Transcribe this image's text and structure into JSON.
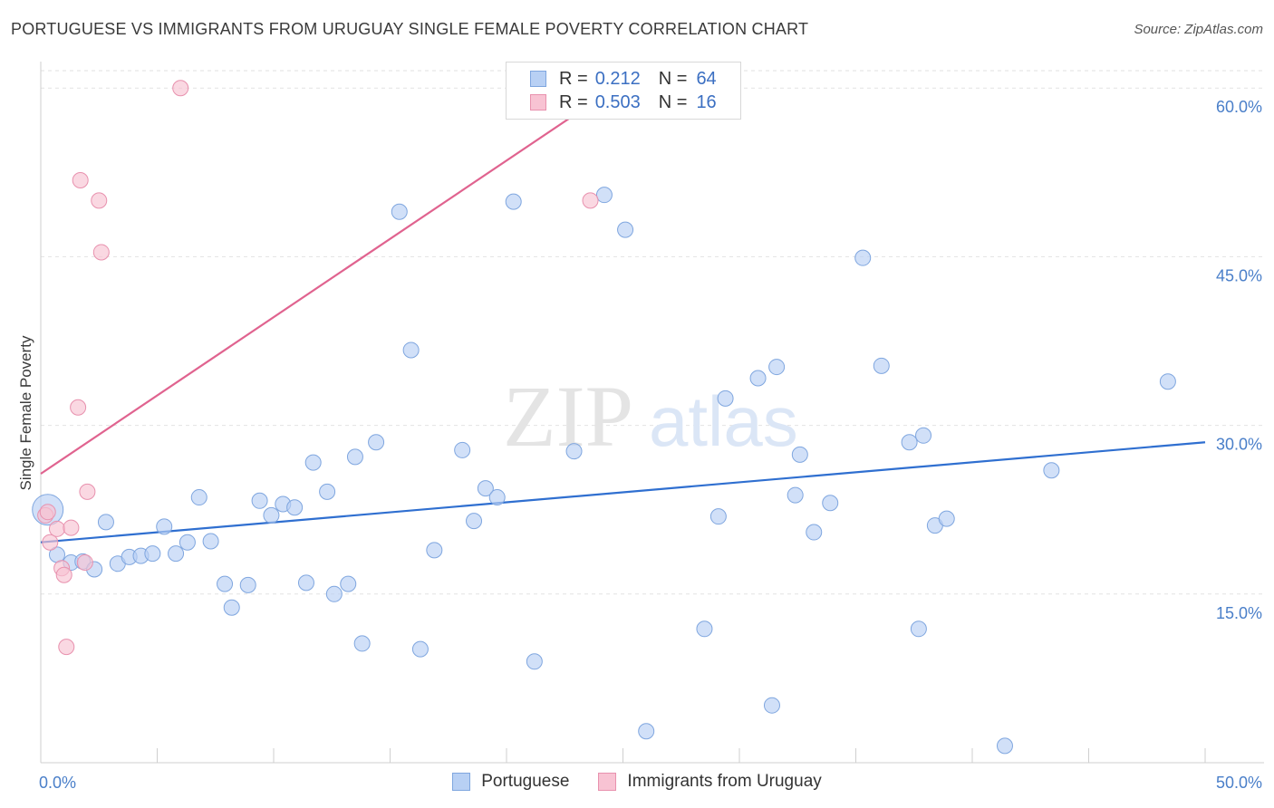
{
  "header": {
    "title": "PORTUGUESE VS IMMIGRANTS FROM URUGUAY SINGLE FEMALE POVERTY CORRELATION CHART",
    "source": "Source: ZipAtlas.com"
  },
  "colors": {
    "blue_fill": "#b8d0f4",
    "blue_stroke": "#7fa6df",
    "blue_line": "#2f6fd0",
    "pink_fill": "#f8c3d3",
    "pink_stroke": "#e891ae",
    "pink_line": "#e0638f",
    "grid": "#e2e2e2",
    "axis_text": "#4a7fc9"
  },
  "legend": {
    "series1": {
      "r_label": "R =",
      "r_value": "0.212",
      "n_label": "N =",
      "n_value": "64"
    },
    "series2": {
      "r_label": "R =",
      "r_value": "0.503",
      "n_label": "N =",
      "n_value": "16"
    }
  },
  "watermark": {
    "part1": "ZIP",
    "part2": "atlas"
  },
  "chart_data": {
    "type": "scatter",
    "title": "PORTUGUESE VS IMMIGRANTS FROM URUGUAY SINGLE FEMALE POVERTY CORRELATION CHART",
    "xlabel": "",
    "ylabel": "Single Female Poverty",
    "xlim": [
      0,
      50
    ],
    "ylim": [
      0,
      63
    ],
    "x_ticks": [
      "0.0%",
      "50.0%"
    ],
    "y_ticks": [
      {
        "value": 15,
        "label": "15.0%"
      },
      {
        "value": 30,
        "label": "30.0%"
      },
      {
        "value": 45,
        "label": "45.0%"
      },
      {
        "value": 60,
        "label": "60.0%"
      }
    ],
    "grid": true,
    "legend_position": "top-center",
    "series": [
      {
        "name": "Portuguese",
        "r": 0.212,
        "n": 64,
        "trend": {
          "x": [
            0,
            50
          ],
          "y": [
            19.6,
            28.5
          ]
        },
        "points": [
          {
            "x": 0.3,
            "y": 22.5,
            "big": true
          },
          {
            "x": 0.7,
            "y": 18.5
          },
          {
            "x": 1.3,
            "y": 17.8
          },
          {
            "x": 1.8,
            "y": 17.9
          },
          {
            "x": 2.3,
            "y": 17.2
          },
          {
            "x": 2.8,
            "y": 21.4
          },
          {
            "x": 3.3,
            "y": 17.7
          },
          {
            "x": 3.8,
            "y": 18.3
          },
          {
            "x": 4.3,
            "y": 18.4
          },
          {
            "x": 4.8,
            "y": 18.6
          },
          {
            "x": 5.3,
            "y": 21.0
          },
          {
            "x": 5.8,
            "y": 18.6
          },
          {
            "x": 6.3,
            "y": 19.6
          },
          {
            "x": 6.8,
            "y": 23.6
          },
          {
            "x": 7.3,
            "y": 19.7
          },
          {
            "x": 7.9,
            "y": 15.9
          },
          {
            "x": 8.2,
            "y": 13.8
          },
          {
            "x": 8.9,
            "y": 15.8
          },
          {
            "x": 9.4,
            "y": 23.3
          },
          {
            "x": 9.9,
            "y": 22.0
          },
          {
            "x": 10.4,
            "y": 23.0
          },
          {
            "x": 10.9,
            "y": 22.7
          },
          {
            "x": 11.4,
            "y": 16.0
          },
          {
            "x": 11.7,
            "y": 26.7
          },
          {
            "x": 12.3,
            "y": 24.1
          },
          {
            "x": 12.6,
            "y": 15.0
          },
          {
            "x": 13.2,
            "y": 15.9
          },
          {
            "x": 13.8,
            "y": 10.6
          },
          {
            "x": 13.5,
            "y": 27.2
          },
          {
            "x": 14.4,
            "y": 28.5
          },
          {
            "x": 15.4,
            "y": 49.0
          },
          {
            "x": 15.9,
            "y": 36.7
          },
          {
            "x": 16.3,
            "y": 10.1
          },
          {
            "x": 16.9,
            "y": 18.9
          },
          {
            "x": 18.1,
            "y": 27.8
          },
          {
            "x": 18.6,
            "y": 21.5
          },
          {
            "x": 19.1,
            "y": 24.4
          },
          {
            "x": 19.6,
            "y": 23.6
          },
          {
            "x": 20.3,
            "y": 49.9
          },
          {
            "x": 21.2,
            "y": 9.0
          },
          {
            "x": 22.9,
            "y": 27.7
          },
          {
            "x": 24.2,
            "y": 50.5
          },
          {
            "x": 25.1,
            "y": 47.4
          },
          {
            "x": 26.0,
            "y": 2.8
          },
          {
            "x": 28.5,
            "y": 11.9
          },
          {
            "x": 29.1,
            "y": 21.9
          },
          {
            "x": 29.4,
            "y": 32.4
          },
          {
            "x": 30.8,
            "y": 34.2
          },
          {
            "x": 31.4,
            "y": 5.1
          },
          {
            "x": 31.6,
            "y": 35.2
          },
          {
            "x": 32.4,
            "y": 23.8
          },
          {
            "x": 32.6,
            "y": 27.4
          },
          {
            "x": 33.2,
            "y": 20.5
          },
          {
            "x": 33.9,
            "y": 23.1
          },
          {
            "x": 35.3,
            "y": 44.9
          },
          {
            "x": 36.1,
            "y": 35.3
          },
          {
            "x": 37.3,
            "y": 28.5
          },
          {
            "x": 37.9,
            "y": 29.1
          },
          {
            "x": 37.7,
            "y": 11.9
          },
          {
            "x": 38.4,
            "y": 21.1
          },
          {
            "x": 38.9,
            "y": 21.7
          },
          {
            "x": 41.4,
            "y": 1.5
          },
          {
            "x": 43.4,
            "y": 26.0
          },
          {
            "x": 48.4,
            "y": 33.9
          }
        ]
      },
      {
        "name": "Immigrants from Uruguay",
        "r": 0.503,
        "n": 16,
        "trend": {
          "x": [
            0,
            24.2
          ],
          "y": [
            25.7,
            59.4
          ]
        },
        "points": [
          {
            "x": 0.2,
            "y": 22.0
          },
          {
            "x": 0.4,
            "y": 19.6
          },
          {
            "x": 0.7,
            "y": 20.8
          },
          {
            "x": 0.9,
            "y": 17.3
          },
          {
            "x": 1.0,
            "y": 16.7
          },
          {
            "x": 1.1,
            "y": 10.3
          },
          {
            "x": 1.3,
            "y": 20.9
          },
          {
            "x": 1.6,
            "y": 31.6
          },
          {
            "x": 1.7,
            "y": 51.8
          },
          {
            "x": 1.9,
            "y": 17.8
          },
          {
            "x": 2.0,
            "y": 24.1
          },
          {
            "x": 2.5,
            "y": 50.0
          },
          {
            "x": 2.6,
            "y": 45.4
          },
          {
            "x": 6.0,
            "y": 60.0
          },
          {
            "x": 23.6,
            "y": 50.0
          },
          {
            "x": 0.3,
            "y": 22.3
          }
        ]
      }
    ]
  }
}
